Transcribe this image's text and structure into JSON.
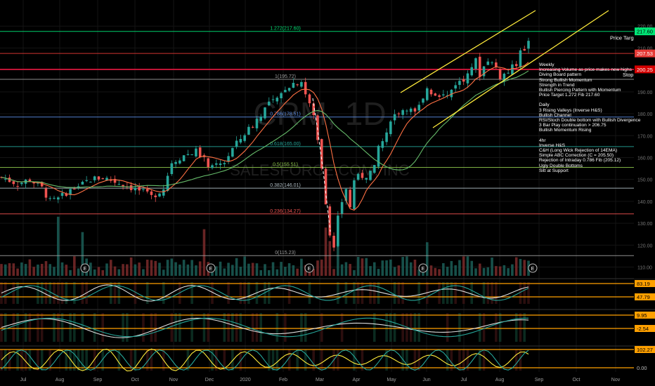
{
  "chart_data": {
    "type": "candlestick",
    "symbol_watermark": "CRM, 1D",
    "company_watermark": "SALESFORCE.COM, INC",
    "timeframe": "1D",
    "x_labels": [
      "Jul",
      "Aug",
      "Sep",
      "Oct",
      "Nov",
      "Dec",
      "2020",
      "Feb",
      "Mar",
      "Apr",
      "May",
      "Jun",
      "Jul",
      "Aug",
      "Sep",
      "Oct",
      "Nov"
    ],
    "y_ticks": [
      110,
      120,
      130,
      140,
      150,
      160,
      170,
      180,
      190,
      200,
      210,
      220
    ],
    "ylim": [
      106,
      230
    ],
    "earnings_markers": [
      "E",
      "E",
      "E",
      "E",
      "E"
    ],
    "close_path": [
      [
        0,
        151
      ],
      [
        4,
        148
      ],
      [
        7,
        150
      ],
      [
        10,
        146
      ],
      [
        12,
        140
      ],
      [
        14,
        141
      ],
      [
        16,
        144
      ],
      [
        19,
        147
      ],
      [
        22,
        150
      ],
      [
        25,
        151
      ],
      [
        28,
        149
      ],
      [
        31,
        147
      ],
      [
        34,
        145
      ],
      [
        37,
        142
      ],
      [
        40,
        146
      ],
      [
        42,
        158
      ],
      [
        45,
        161
      ],
      [
        48,
        163
      ],
      [
        50,
        159
      ],
      [
        52,
        155
      ],
      [
        55,
        158
      ],
      [
        57,
        164
      ],
      [
        60,
        171
      ],
      [
        62,
        175
      ],
      [
        64,
        180
      ],
      [
        66,
        185
      ],
      [
        68,
        186
      ],
      [
        70,
        192
      ],
      [
        72,
        194
      ],
      [
        74,
        195
      ],
      [
        75,
        189
      ],
      [
        77,
        179
      ],
      [
        78,
        168
      ],
      [
        79,
        156
      ],
      [
        80,
        140
      ],
      [
        81,
        125
      ],
      [
        82,
        118
      ],
      [
        83,
        132
      ],
      [
        84,
        140
      ],
      [
        85,
        146
      ],
      [
        86,
        137
      ],
      [
        87,
        150
      ],
      [
        88,
        151
      ],
      [
        90,
        152
      ],
      [
        92,
        155
      ],
      [
        93,
        165
      ],
      [
        95,
        170
      ],
      [
        96,
        178
      ],
      [
        98,
        181
      ],
      [
        100,
        183
      ],
      [
        102,
        180
      ],
      [
        104,
        186
      ],
      [
        105,
        192
      ],
      [
        106,
        190
      ],
      [
        108,
        189
      ],
      [
        110,
        188
      ],
      [
        112,
        194
      ],
      [
        114,
        195
      ],
      [
        115,
        200
      ],
      [
        117,
        204
      ],
      [
        118,
        198
      ],
      [
        120,
        205
      ],
      [
        122,
        201
      ],
      [
        123,
        197
      ],
      [
        125,
        199
      ],
      [
        127,
        203
      ],
      [
        128,
        210
      ],
      [
        129,
        208
      ],
      [
        130,
        214
      ]
    ],
    "levels": [
      {
        "kind": "fib",
        "label": "1.272(217.60)",
        "value": 217.6,
        "color": "#00e676"
      },
      {
        "kind": "line",
        "value": 207.53,
        "color": "#e53935"
      },
      {
        "kind": "line",
        "value": 200.25,
        "color": "#ff1744"
      },
      {
        "kind": "fib",
        "label": "1(195.72)",
        "value": 195.72,
        "color": "#9e9e9e"
      },
      {
        "kind": "fib",
        "label": "0.786(178.51)",
        "value": 178.51,
        "color": "#5c8ee6"
      },
      {
        "kind": "fib",
        "label": "0.618(165.00)",
        "value": 165.0,
        "color": "#26a69a"
      },
      {
        "kind": "fib",
        "label": "0.5(155.51)",
        "value": 155.51,
        "color": "#8bc34a"
      },
      {
        "kind": "fib",
        "label": "0.382(146.01)",
        "value": 146.01,
        "color": "#b0bec5"
      },
      {
        "kind": "fib",
        "label": "0.236(134.27)",
        "value": 134.27,
        "color": "#ef5350"
      },
      {
        "kind": "fib",
        "label": "0(115.23)",
        "value": 115.23,
        "color": "#9e9e9e"
      }
    ],
    "price_badges": [
      {
        "text": "217.60",
        "value": 217.6,
        "bg": "#00e676",
        "fg": "#000000"
      },
      {
        "text": "207.53",
        "value": 207.53,
        "bg": "#e53935",
        "fg": "#ffffff"
      },
      {
        "text": "200.25",
        "value": 200.25,
        "bg": "#d50000",
        "fg": "#ffffff"
      }
    ],
    "line_labels": {
      "target": "Price Target",
      "stop": "Stop"
    },
    "indicator_panels": [
      {
        "levels": [
          "83.19",
          "47.79"
        ],
        "badge_colors": [
          "#ffa000",
          "#ffa000"
        ]
      },
      {
        "levels": [
          "9.95",
          "-2.54"
        ],
        "badge_colors": [
          "#ffa000",
          "#ffa000"
        ]
      },
      {
        "levels": [
          "102.27",
          "0.00"
        ],
        "badge_colors": [
          "#ffa000",
          "#000000"
        ]
      }
    ],
    "colors": {
      "up": "#26a69a",
      "down": "#ef5350",
      "channel": "#ffeb3b",
      "ma_fast": "#ff7043",
      "ma_slow": "#66bb6a"
    }
  },
  "notes": {
    "weekly": [
      "Weekly",
      "Increasing Volume as price makes new highs",
      "Diving Board pattern",
      "Strong Bullish Momentum",
      "Strength in Trend",
      "Bullish Piercing Pattern with Momentum",
      "Price Target 1.272 Fib 217.60"
    ],
    "daily": [
      "Daily",
      "3 Rising Valleys (Inverse H&S)",
      "Bullish Channel",
      "RSI/Stoch Double bottom with Bullish Divergence",
      "3 Bar Play continuation > 206.75",
      "Bullish Momentum Rising"
    ],
    "h4": [
      "4hr",
      "Inverse H&S",
      "C&H (Long Wick Rejection of 14EMA)",
      "Simple ABC Correction (C = 205.50)",
      "Rejection of Intraday 0.786 Fib (205.12)",
      "Ugly Double Bottoms",
      "Sitt at Support"
    ]
  }
}
